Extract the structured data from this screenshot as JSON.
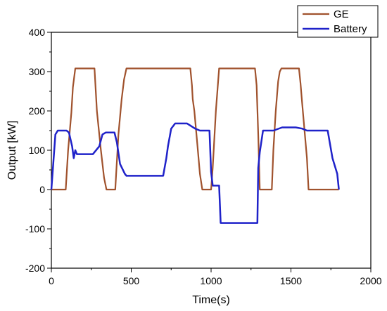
{
  "chart_data": {
    "type": "line",
    "xlabel": "Time(s)",
    "ylabel": "Output [kW]",
    "xlim": [
      0,
      2000
    ],
    "ylim": [
      -200,
      400
    ],
    "x_ticks": [
      0,
      500,
      1000,
      1500,
      2000
    ],
    "y_ticks": [
      -200,
      -100,
      0,
      100,
      200,
      300,
      400
    ],
    "grid": false,
    "legend_position": "top-right",
    "series": [
      {
        "name": "GE",
        "color": "#a0522d",
        "points": [
          [
            0,
            0
          ],
          [
            90,
            0
          ],
          [
            105,
            100
          ],
          [
            125,
            195
          ],
          [
            135,
            260
          ],
          [
            150,
            308
          ],
          [
            270,
            308
          ],
          [
            285,
            200
          ],
          [
            310,
            100
          ],
          [
            330,
            30
          ],
          [
            345,
            0
          ],
          [
            400,
            0
          ],
          [
            420,
            140
          ],
          [
            440,
            230
          ],
          [
            455,
            280
          ],
          [
            470,
            308
          ],
          [
            870,
            308
          ],
          [
            880,
            265
          ],
          [
            885,
            230
          ],
          [
            895,
            200
          ],
          [
            915,
            110
          ],
          [
            930,
            40
          ],
          [
            945,
            0
          ],
          [
            1000,
            0
          ],
          [
            1010,
            55
          ],
          [
            1030,
            200
          ],
          [
            1050,
            308
          ],
          [
            1275,
            308
          ],
          [
            1285,
            265
          ],
          [
            1295,
            140
          ],
          [
            1305,
            0
          ],
          [
            1380,
            0
          ],
          [
            1390,
            100
          ],
          [
            1405,
            200
          ],
          [
            1420,
            275
          ],
          [
            1430,
            300
          ],
          [
            1440,
            308
          ],
          [
            1550,
            308
          ],
          [
            1560,
            270
          ],
          [
            1570,
            220
          ],
          [
            1600,
            80
          ],
          [
            1610,
            0
          ],
          [
            1800,
            0
          ]
        ]
      },
      {
        "name": "Battery",
        "color": "#1f22c9",
        "points": [
          [
            0,
            0
          ],
          [
            25,
            140
          ],
          [
            40,
            150
          ],
          [
            95,
            150
          ],
          [
            110,
            145
          ],
          [
            130,
            110
          ],
          [
            140,
            80
          ],
          [
            150,
            100
          ],
          [
            160,
            90
          ],
          [
            260,
            90
          ],
          [
            300,
            110
          ],
          [
            320,
            140
          ],
          [
            340,
            145
          ],
          [
            395,
            145
          ],
          [
            410,
            120
          ],
          [
            430,
            65
          ],
          [
            460,
            40
          ],
          [
            470,
            35
          ],
          [
            700,
            35
          ],
          [
            720,
            80
          ],
          [
            730,
            110
          ],
          [
            750,
            155
          ],
          [
            775,
            168
          ],
          [
            850,
            168
          ],
          [
            900,
            155
          ],
          [
            930,
            150
          ],
          [
            990,
            150
          ],
          [
            1000,
            45
          ],
          [
            1010,
            10
          ],
          [
            1050,
            10
          ],
          [
            1060,
            -85
          ],
          [
            1290,
            -85
          ],
          [
            1295,
            55
          ],
          [
            1305,
            95
          ],
          [
            1325,
            150
          ],
          [
            1390,
            150
          ],
          [
            1445,
            158
          ],
          [
            1530,
            158
          ],
          [
            1570,
            155
          ],
          [
            1600,
            150
          ],
          [
            1730,
            150
          ],
          [
            1760,
            80
          ],
          [
            1790,
            40
          ],
          [
            1800,
            0
          ]
        ]
      }
    ]
  }
}
